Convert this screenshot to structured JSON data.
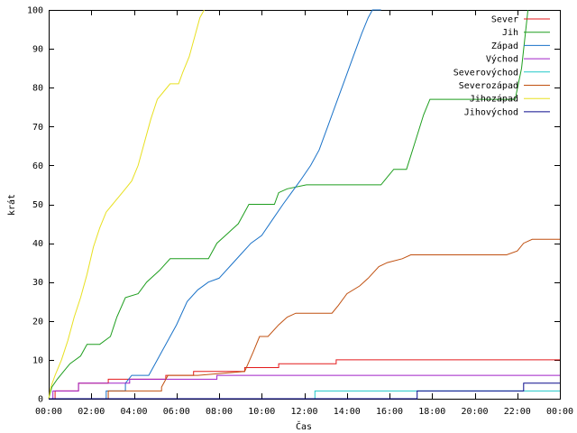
{
  "chart_data": {
    "type": "line",
    "title": "",
    "xlabel": "Čas",
    "ylabel": "krát",
    "xlim": [
      0,
      24
    ],
    "ylim": [
      0,
      100
    ],
    "grid": false,
    "legend_position": "top-right",
    "x_ticks": [
      0,
      2,
      4,
      6,
      8,
      10,
      12,
      14,
      16,
      18,
      20,
      22,
      24
    ],
    "x_tick_labels": [
      "00:00",
      "02:00",
      "04:00",
      "06:00",
      "08:00",
      "10:00",
      "12:00",
      "14:00",
      "16:00",
      "18:00",
      "20:00",
      "22:00",
      "00:00"
    ],
    "y_ticks": [
      0,
      10,
      20,
      30,
      40,
      50,
      60,
      70,
      80,
      90,
      100
    ],
    "y_tick_labels": [
      "0",
      "10",
      "20",
      "30",
      "40",
      "50",
      "60",
      "70",
      "80",
      "90",
      "100"
    ],
    "series": [
      {
        "name": "Sever",
        "color": "#e41a1c",
        "points": [
          [
            0,
            0
          ],
          [
            0.3,
            0
          ],
          [
            0.3,
            2
          ],
          [
            1.4,
            2
          ],
          [
            1.4,
            4
          ],
          [
            2.8,
            4
          ],
          [
            2.8,
            5
          ],
          [
            5.5,
            5
          ],
          [
            5.5,
            6
          ],
          [
            6.8,
            6
          ],
          [
            6.8,
            7
          ],
          [
            9.2,
            7
          ],
          [
            9.2,
            8
          ],
          [
            10.8,
            8
          ],
          [
            10.8,
            9
          ],
          [
            13.5,
            9
          ],
          [
            13.5,
            10
          ],
          [
            24,
            10
          ]
        ]
      },
      {
        "name": "Jih",
        "color": "#1e9e1e",
        "points": [
          [
            0,
            0
          ],
          [
            0.15,
            3
          ],
          [
            0.4,
            5
          ],
          [
            0.7,
            7
          ],
          [
            1.0,
            9
          ],
          [
            1.5,
            11
          ],
          [
            1.8,
            14
          ],
          [
            2.4,
            14
          ],
          [
            2.9,
            16
          ],
          [
            3.2,
            21
          ],
          [
            3.6,
            26
          ],
          [
            4.2,
            27
          ],
          [
            4.6,
            30
          ],
          [
            5.2,
            33
          ],
          [
            5.7,
            36
          ],
          [
            7.5,
            36
          ],
          [
            7.9,
            40
          ],
          [
            8.3,
            42
          ],
          [
            8.9,
            45
          ],
          [
            9.2,
            48
          ],
          [
            9.4,
            50
          ],
          [
            10.6,
            50
          ],
          [
            10.8,
            53
          ],
          [
            11.2,
            54
          ],
          [
            12.1,
            55
          ],
          [
            15.6,
            55
          ],
          [
            15.9,
            57
          ],
          [
            16.2,
            59
          ],
          [
            16.8,
            59
          ],
          [
            17.2,
            66
          ],
          [
            17.6,
            73
          ],
          [
            17.9,
            77
          ],
          [
            21.9,
            77
          ],
          [
            22.2,
            85
          ],
          [
            22.5,
            100
          ]
        ]
      },
      {
        "name": "Západ",
        "color": "#1a72c8",
        "points": [
          [
            0,
            0
          ],
          [
            2.7,
            0
          ],
          [
            2.7,
            2
          ],
          [
            3.6,
            2
          ],
          [
            3.6,
            4
          ],
          [
            3.9,
            6
          ],
          [
            4.7,
            6
          ],
          [
            5.0,
            9
          ],
          [
            5.3,
            12
          ],
          [
            5.6,
            15
          ],
          [
            6.0,
            19
          ],
          [
            6.5,
            25
          ],
          [
            7.0,
            28
          ],
          [
            7.5,
            30
          ],
          [
            8.0,
            31
          ],
          [
            8.5,
            34
          ],
          [
            9.0,
            37
          ],
          [
            9.5,
            40
          ],
          [
            10.0,
            42
          ],
          [
            10.5,
            46
          ],
          [
            11.0,
            50
          ],
          [
            11.4,
            53
          ],
          [
            11.8,
            56
          ],
          [
            12.3,
            60
          ],
          [
            12.7,
            64
          ],
          [
            13.1,
            70
          ],
          [
            13.5,
            76
          ],
          [
            13.9,
            82
          ],
          [
            14.3,
            88
          ],
          [
            14.7,
            94
          ],
          [
            15.0,
            98
          ],
          [
            15.2,
            100
          ],
          [
            15.6,
            100
          ]
        ]
      },
      {
        "name": "Východ",
        "color": "#a020c8",
        "points": [
          [
            0,
            0
          ],
          [
            0.2,
            0
          ],
          [
            0.2,
            2
          ],
          [
            1.4,
            2
          ],
          [
            1.4,
            4
          ],
          [
            3.8,
            4
          ],
          [
            3.8,
            5
          ],
          [
            7.9,
            5
          ],
          [
            7.9,
            6
          ],
          [
            24,
            6
          ]
        ]
      },
      {
        "name": "Severovýchod",
        "color": "#20c8c8",
        "points": [
          [
            0,
            0
          ],
          [
            12.5,
            0
          ],
          [
            12.5,
            2
          ],
          [
            24,
            2
          ]
        ]
      },
      {
        "name": "Severozápad",
        "color": "#c05010",
        "points": [
          [
            0,
            0
          ],
          [
            2.8,
            0
          ],
          [
            2.8,
            2
          ],
          [
            5.3,
            2
          ],
          [
            5.3,
            3
          ],
          [
            5.6,
            6
          ],
          [
            7.0,
            6
          ],
          [
            9.2,
            7
          ],
          [
            9.6,
            12
          ],
          [
            9.9,
            16
          ],
          [
            10.3,
            16
          ],
          [
            10.8,
            19
          ],
          [
            11.2,
            21
          ],
          [
            11.6,
            22
          ],
          [
            13.3,
            22
          ],
          [
            13.6,
            24
          ],
          [
            14.0,
            27
          ],
          [
            14.6,
            29
          ],
          [
            15.0,
            31
          ],
          [
            15.5,
            34
          ],
          [
            15.9,
            35
          ],
          [
            16.6,
            36
          ],
          [
            17.0,
            37
          ],
          [
            21.5,
            37
          ],
          [
            22.0,
            38
          ],
          [
            22.3,
            40
          ],
          [
            22.7,
            41
          ],
          [
            24,
            41
          ]
        ]
      },
      {
        "name": "Jihozápad",
        "color": "#e8e020",
        "points": [
          [
            0,
            0
          ],
          [
            0.1,
            3
          ],
          [
            0.3,
            6
          ],
          [
            0.6,
            10
          ],
          [
            0.9,
            15
          ],
          [
            1.2,
            21
          ],
          [
            1.5,
            26
          ],
          [
            1.8,
            32
          ],
          [
            2.1,
            39
          ],
          [
            2.4,
            44
          ],
          [
            2.7,
            48
          ],
          [
            3.0,
            50
          ],
          [
            3.3,
            52
          ],
          [
            3.6,
            54
          ],
          [
            3.9,
            56
          ],
          [
            4.2,
            60
          ],
          [
            4.5,
            66
          ],
          [
            4.8,
            72
          ],
          [
            5.1,
            77
          ],
          [
            5.4,
            79
          ],
          [
            5.7,
            81
          ],
          [
            6.1,
            81
          ],
          [
            6.3,
            84
          ],
          [
            6.6,
            88
          ],
          [
            6.9,
            94
          ],
          [
            7.1,
            98
          ],
          [
            7.3,
            100
          ]
        ]
      },
      {
        "name": "Jihovýchod",
        "color": "#0a0a8c",
        "points": [
          [
            0,
            0
          ],
          [
            17.3,
            0
          ],
          [
            17.3,
            2
          ],
          [
            22.3,
            2
          ],
          [
            22.3,
            4
          ],
          [
            24,
            4
          ]
        ]
      }
    ]
  }
}
